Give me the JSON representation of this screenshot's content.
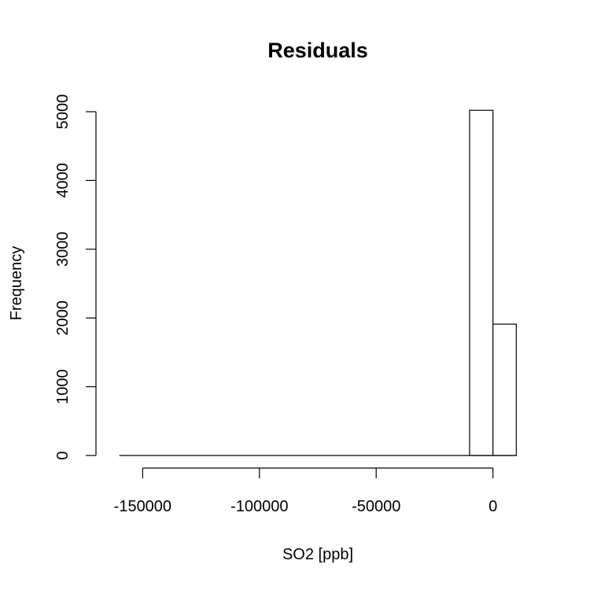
{
  "chart_data": {
    "type": "bar",
    "title": "Residuals",
    "xlabel": "SO2 [ppb]",
    "ylabel": "Frequency",
    "x_ticks": [
      -150000,
      -100000,
      -50000,
      0
    ],
    "x_tick_labels": [
      "-150000",
      "-100000",
      "-50000",
      "0"
    ],
    "y_ticks": [
      0,
      1000,
      2000,
      3000,
      4000,
      5000
    ],
    "y_tick_labels": [
      "0",
      "1000",
      "2000",
      "3000",
      "4000",
      "5000"
    ],
    "xlim": [
      -170000,
      20000
    ],
    "ylim": [
      0,
      5000
    ],
    "bins": [
      {
        "from": -160000,
        "to": -150000,
        "count": 0
      },
      {
        "from": -150000,
        "to": -140000,
        "count": 0
      },
      {
        "from": -140000,
        "to": -130000,
        "count": 0
      },
      {
        "from": -130000,
        "to": -120000,
        "count": 0
      },
      {
        "from": -120000,
        "to": -110000,
        "count": 0
      },
      {
        "from": -110000,
        "to": -100000,
        "count": 0
      },
      {
        "from": -100000,
        "to": -90000,
        "count": 0
      },
      {
        "from": -90000,
        "to": -80000,
        "count": 0
      },
      {
        "from": -80000,
        "to": -70000,
        "count": 0
      },
      {
        "from": -70000,
        "to": -60000,
        "count": 0
      },
      {
        "from": -60000,
        "to": -50000,
        "count": 0
      },
      {
        "from": -50000,
        "to": -40000,
        "count": 0
      },
      {
        "from": -40000,
        "to": -30000,
        "count": 0
      },
      {
        "from": -30000,
        "to": -20000,
        "count": 0
      },
      {
        "from": -20000,
        "to": -10000,
        "count": 0
      },
      {
        "from": -10000,
        "to": 0,
        "count": 5020
      },
      {
        "from": 0,
        "to": 10000,
        "count": 1910
      }
    ],
    "colors": {
      "bar_fill": "#ffffff",
      "stroke": "#000000"
    }
  }
}
